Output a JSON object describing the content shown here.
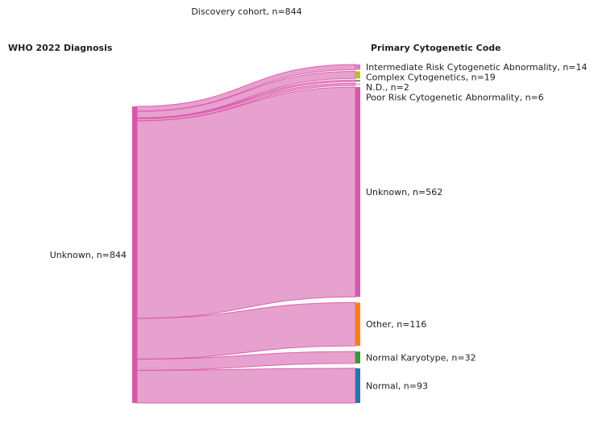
{
  "title": "Discovery cohort, n=844",
  "left_header": "WHO 2022 Diagnosis",
  "right_header": "Primary Cytogenetic Code",
  "colors": {
    "source_node": "#d957a8",
    "link_fill": "#e390c6",
    "link_stroke": "#d957a8"
  },
  "chart_data": {
    "type": "sankey",
    "source": {
      "label": "Unknown, n=844",
      "value": 844
    },
    "targets": [
      {
        "label": "Intermediate Risk Cytogenetic Abnormality, n=14",
        "value": 14,
        "color": "#e377c2"
      },
      {
        "label": "Complex Cytogenetics, n=19",
        "value": 19,
        "color": "#bcbd22"
      },
      {
        "label": "N.D., n=2",
        "value": 2,
        "color": "#7f7f7f"
      },
      {
        "label": "Poor Risk Cytogenetic Abnormality, n=6",
        "value": 6,
        "color": "#f7b6d2"
      },
      {
        "label": "Unknown, n=562",
        "value": 562,
        "color": "#d957a8"
      },
      {
        "label": "Other, n=116",
        "value": 116,
        "color": "#ff7f0e"
      },
      {
        "label": "Normal Karyotype, n=32",
        "value": 32,
        "color": "#2ca02c"
      },
      {
        "label": "Normal, n=93",
        "value": 93,
        "color": "#1f77b4"
      }
    ]
  }
}
